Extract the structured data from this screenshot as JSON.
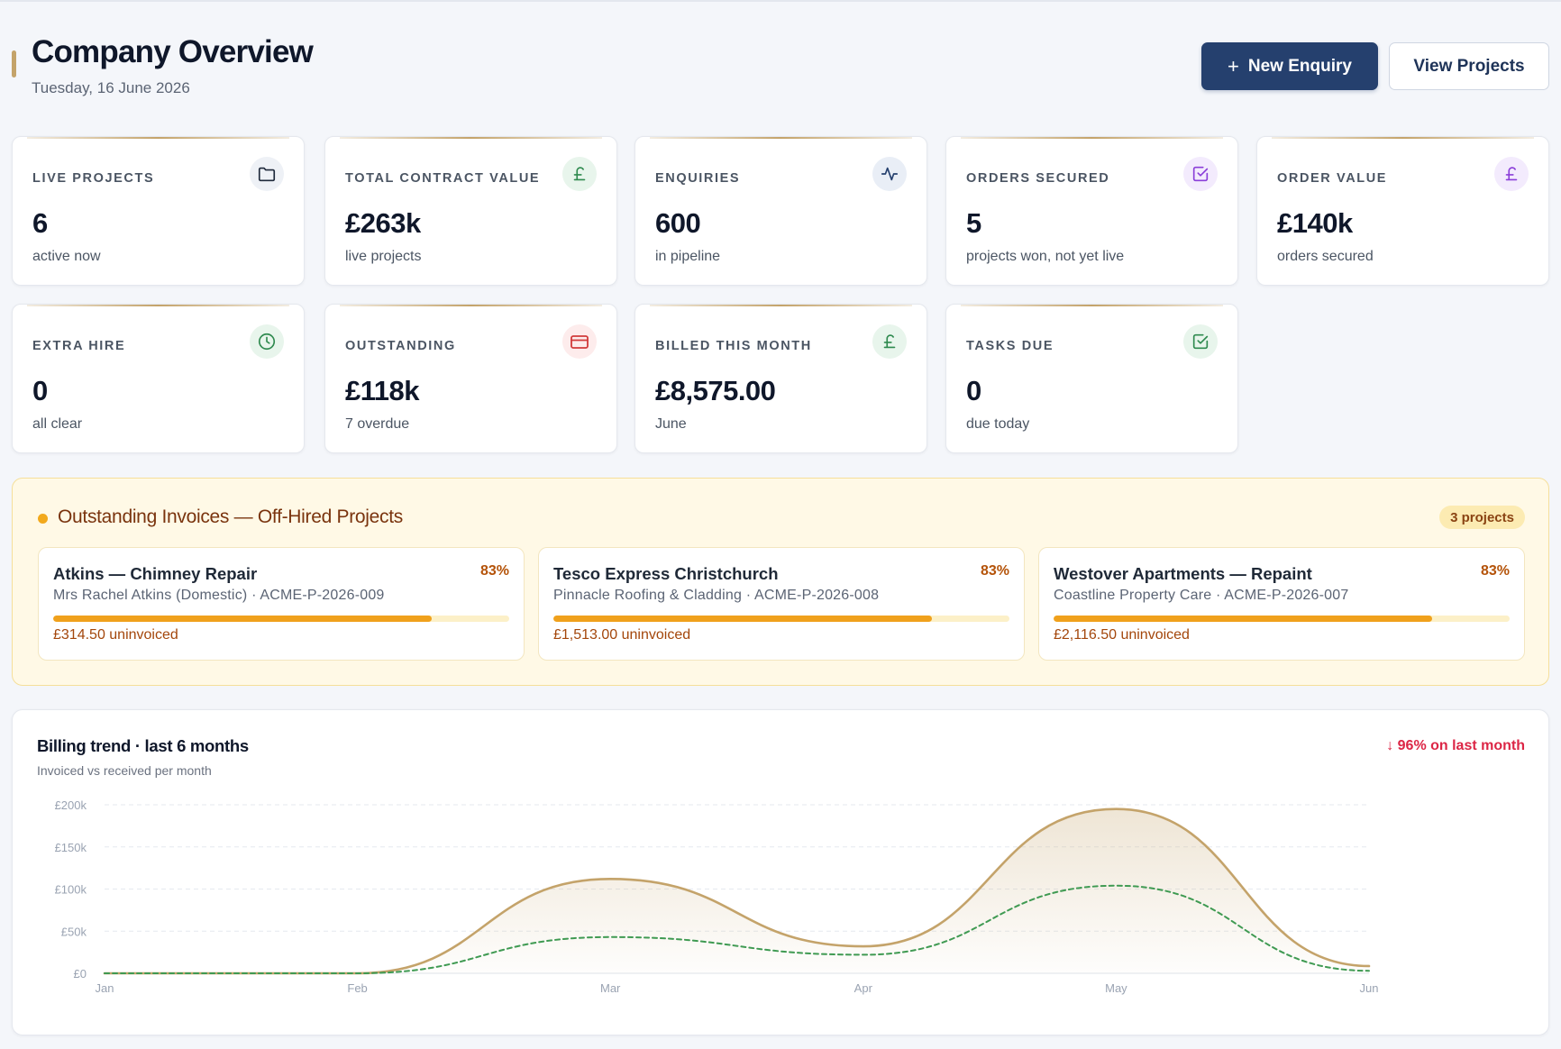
{
  "header": {
    "title": "Company Overview",
    "date": "Tuesday, 16 June 2026",
    "new_enquiry_label": "New Enquiry",
    "view_projects_label": "View Projects"
  },
  "kpis": [
    {
      "label": "LIVE PROJECTS",
      "value": "6",
      "sub": "active now",
      "icon": "folder-icon",
      "color": "#1e293b",
      "bg": "#eef1f6"
    },
    {
      "label": "TOTAL CONTRACT VALUE",
      "value": "£263k",
      "sub": "live projects",
      "icon": "pound-icon",
      "color": "#2f8a4f",
      "bg": "#e8f5ec"
    },
    {
      "label": "ENQUIRIES",
      "value": "600",
      "sub": "in pipeline",
      "icon": "activity-icon",
      "color": "#25406e",
      "bg": "#e9eef6"
    },
    {
      "label": "ORDERS SECURED",
      "value": "5",
      "sub": "projects won, not yet live",
      "icon": "check-square-icon",
      "color": "#8b3fd9",
      "bg": "#f3ebfd"
    },
    {
      "label": "ORDER VALUE",
      "value": "£140k",
      "sub": "orders secured",
      "icon": "pound-icon",
      "color": "#8b3fd9",
      "bg": "#f3ebfd"
    },
    {
      "label": "EXTRA HIRE",
      "value": "0",
      "sub": "all clear",
      "icon": "clock-icon",
      "color": "#2f8a4f",
      "bg": "#e8f5ec"
    },
    {
      "label": "OUTSTANDING",
      "value": "£118k",
      "sub": "7 overdue",
      "icon": "card-icon",
      "color": "#d13b3b",
      "bg": "#fdecec"
    },
    {
      "label": "BILLED THIS MONTH",
      "value": "£8,575.00",
      "sub": "June",
      "icon": "pound-icon",
      "color": "#2f8a4f",
      "bg": "#e8f5ec"
    },
    {
      "label": "TASKS DUE",
      "value": "0",
      "sub": "due today",
      "icon": "check-square-icon",
      "color": "#2f8a4f",
      "bg": "#e8f5ec"
    }
  ],
  "outstanding": {
    "title": "Outstanding Invoices — Off-Hired Projects",
    "badge": "3 projects",
    "items": [
      {
        "name": "Atkins — Chimney Repair",
        "client": "Mrs Rachel Atkins (Domestic) · ACME-P-2026-009",
        "percent_label": "83%",
        "progress": 0.83,
        "amount": "£314.50 uninvoiced"
      },
      {
        "name": "Tesco Express Christchurch",
        "client": "Pinnacle Roofing & Cladding · ACME-P-2026-008",
        "percent_label": "83%",
        "progress": 0.83,
        "amount": "£1,513.00 uninvoiced"
      },
      {
        "name": "Westover Apartments — Repaint",
        "client": "Coastline Property Care · ACME-P-2026-007",
        "percent_label": "83%",
        "progress": 0.83,
        "amount": "£2,116.50 uninvoiced"
      }
    ]
  },
  "billing": {
    "title": "Billing trend · last 6 months",
    "subtitle": "Invoiced vs received per month",
    "delta": "↓ 96% on last month"
  },
  "chart_data": {
    "type": "area",
    "categories": [
      "Jan",
      "Feb",
      "Mar",
      "Apr",
      "May",
      "Jun"
    ],
    "y_ticks": [
      "£0",
      "£50k",
      "£100k",
      "£150k",
      "£200k"
    ],
    "ylim": [
      0,
      200000
    ],
    "series": [
      {
        "values": [
          0,
          0,
          112000,
          32000,
          195000,
          8575
        ],
        "color": "#c4a36a",
        "style": "solid-area"
      },
      {
        "values": [
          0,
          0,
          43000,
          22000,
          104000,
          3000
        ],
        "color": "#3f9a52",
        "style": "dashed"
      }
    ],
    "grid": true
  }
}
